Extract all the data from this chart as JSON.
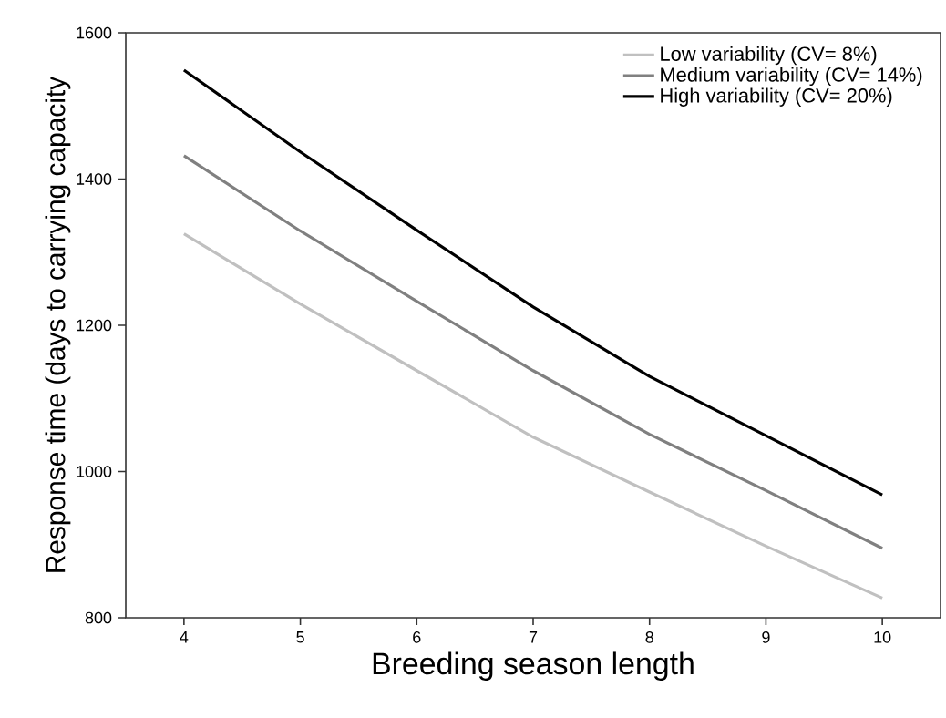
{
  "chart_data": {
    "type": "line",
    "xlabel": "Breeding season length",
    "ylabel": "Response time (days to carrying capacity",
    "x": [
      4,
      5,
      6,
      7,
      8,
      9,
      10
    ],
    "series": [
      {
        "name": "Low variability (CV= 8%)",
        "color": "#c0c0c0",
        "values": [
          1325,
          1229,
          1138,
          1047,
          972,
          898,
          827
        ]
      },
      {
        "name": "Medium variability (CV= 14%)",
        "color": "#808080",
        "values": [
          1432,
          1329,
          1233,
          1138,
          1051,
          974,
          895
        ]
      },
      {
        "name": "High variability (CV= 20%)",
        "color": "#000000",
        "values": [
          1549,
          1437,
          1330,
          1225,
          1130,
          1049,
          968
        ]
      }
    ],
    "xlim": [
      3.5,
      10.5
    ],
    "ylim": [
      800,
      1600
    ],
    "xticks": [
      4,
      5,
      6,
      7,
      8,
      9,
      10
    ],
    "yticks": [
      800,
      1000,
      1200,
      1400,
      1600
    ],
    "legend": "top right",
    "grid": false,
    "marker": "none",
    "line_style": "solid"
  }
}
